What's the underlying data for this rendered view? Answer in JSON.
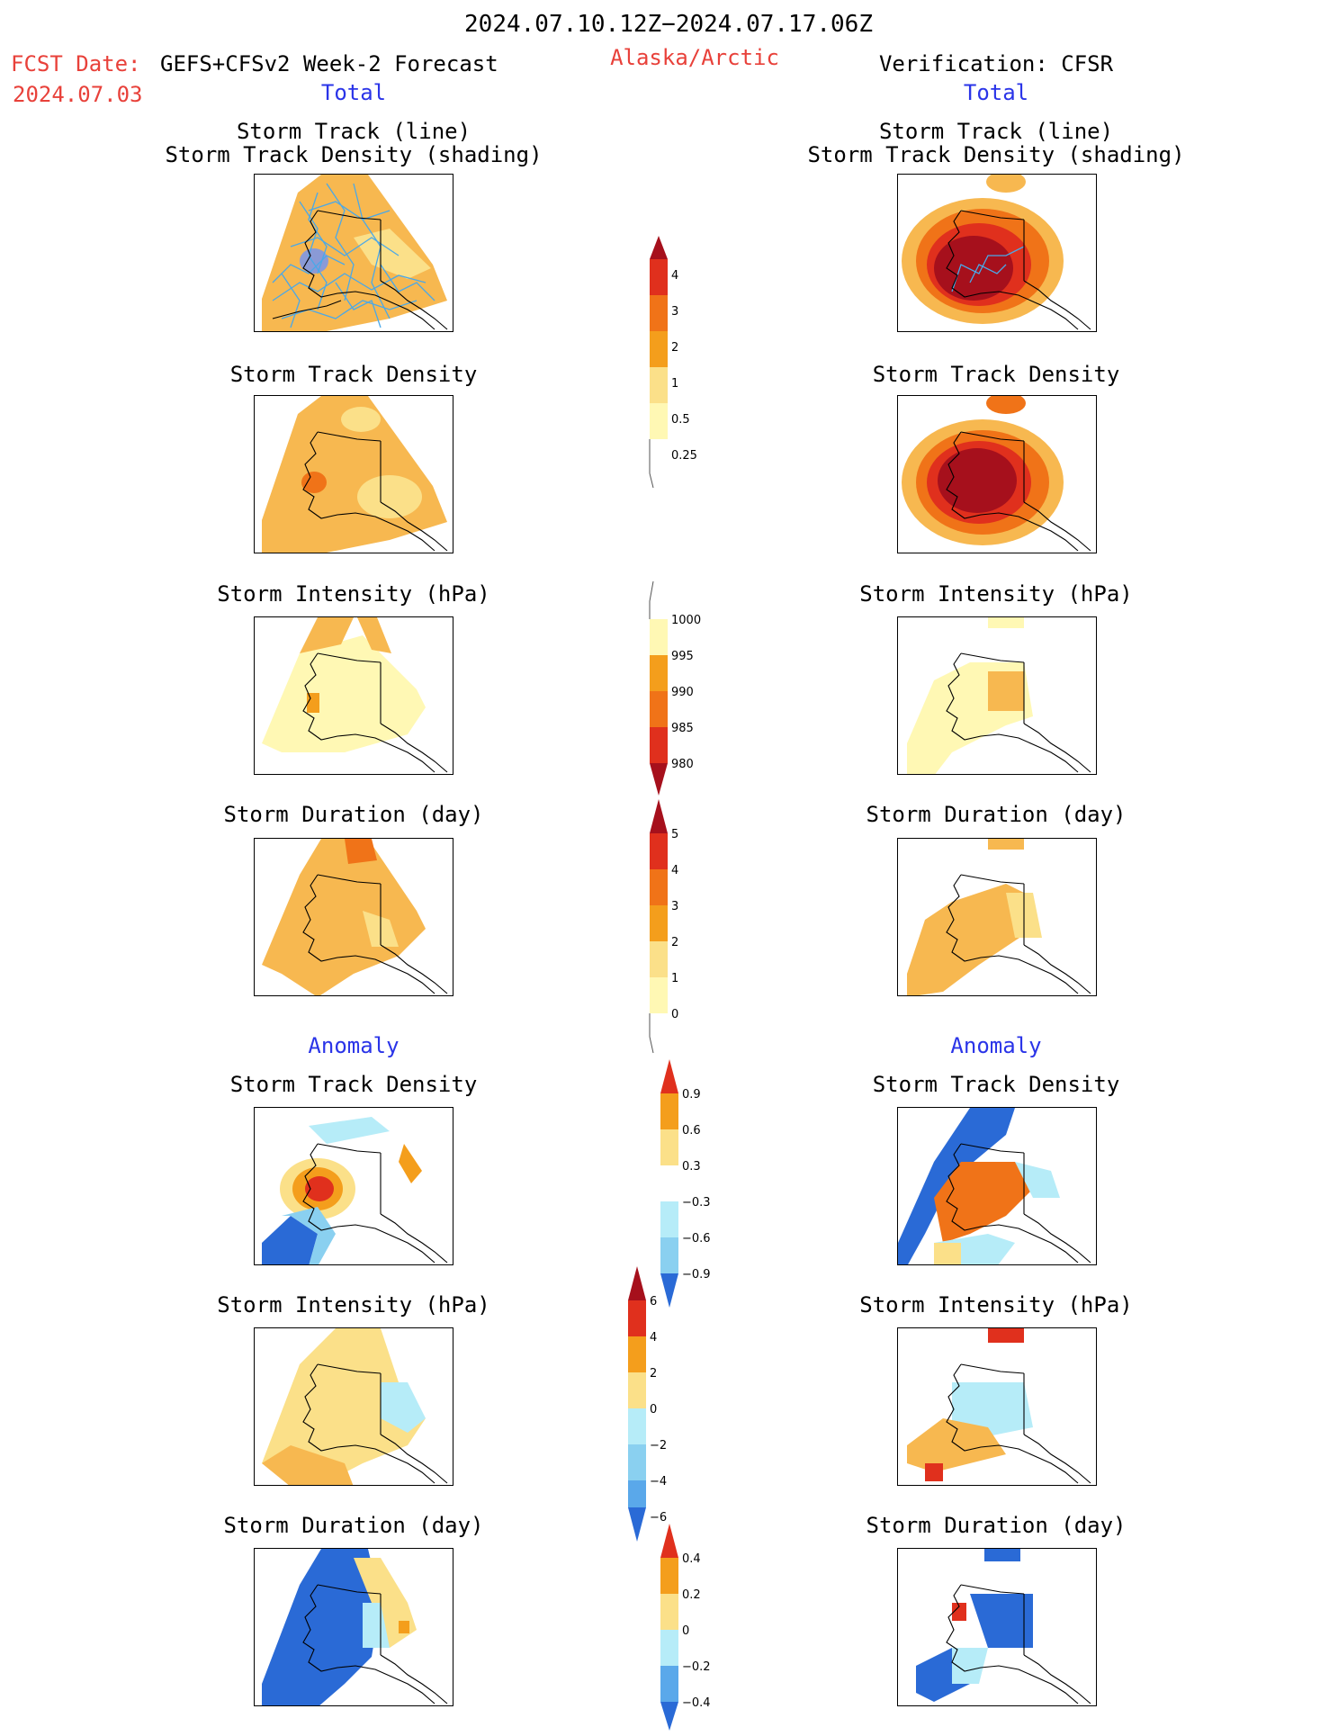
{
  "header": {
    "period": "2024.07.10.12Z−2024.07.17.06Z",
    "fcst_label": "FCST Date:",
    "model": "GEFS+CFSv2 Week-2 Forecast",
    "fcst_date": "2024.07.03",
    "region": "Alaska/Arctic",
    "verification": "Verification: CFSR"
  },
  "sections": {
    "total": "Total",
    "anomaly": "Anomaly"
  },
  "panel_titles": {
    "track_line": "Storm Track (line)",
    "track_shading": "Storm Track Density (shading)",
    "density": "Storm Track Density",
    "intensity": "Storm Intensity (hPa)",
    "duration": "Storm Duration (day)"
  },
  "colorbars": {
    "density": [
      "4",
      "3",
      "2",
      "1",
      "0.5",
      "0.25"
    ],
    "intensity": [
      "1000",
      "995",
      "990",
      "985",
      "980"
    ],
    "duration": [
      "5",
      "4",
      "3",
      "2",
      "1",
      "0"
    ],
    "density_anom": [
      "0.9",
      "0.6",
      "0.3",
      "−0.3",
      "−0.6",
      "−0.9"
    ],
    "intensity_anom": [
      "6",
      "4",
      "2",
      "0",
      "−2",
      "−4",
      "−6"
    ],
    "duration_anom": [
      "0.4",
      "0.2",
      "0",
      "−0.2",
      "−0.4"
    ]
  },
  "colors": {
    "warm": [
      "#fff8b4",
      "#fbe089",
      "#f7b850",
      "#f49e1c",
      "#f07318",
      "#e0301d",
      "#a6101c"
    ],
    "cool": [
      "#b6ecf8",
      "#8ad0f0",
      "#5aa8ea",
      "#2a6ad6"
    ],
    "track_line": "#4aa8e8",
    "title_red": "#e8413a",
    "title_blue": "#2a34e8"
  }
}
